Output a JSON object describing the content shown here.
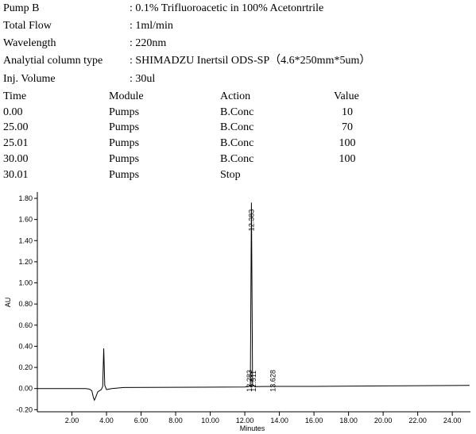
{
  "header": {
    "rows": [
      {
        "label": "Pump B",
        "value": ": 0.1% Trifluoroacetic in 100% Acetonrtrile"
      },
      {
        "label": "Total Flow",
        "value": ": 1ml/min"
      },
      {
        "label": "Wavelength",
        "value": ": 220nm"
      },
      {
        "label": "Analytial column type",
        "value": ": SHIMADZU Inertsil ODS-SP（4.6*250mm*5um）"
      },
      {
        "label": "Inj. Volume",
        "value": ": 30ul"
      }
    ]
  },
  "table": {
    "columns": [
      "Time",
      "Module",
      "Action",
      "Value"
    ],
    "rows": [
      [
        "0.00",
        "Pumps",
        "B.Conc",
        "10"
      ],
      [
        "25.00",
        "Pumps",
        "B.Conc",
        "70"
      ],
      [
        "25.01",
        "Pumps",
        "B.Conc",
        "100"
      ],
      [
        "30.00",
        "Pumps",
        "B.Conc",
        "100"
      ],
      [
        "30.01",
        "Pumps",
        "Stop"
      ]
    ]
  },
  "chart_data": {
    "type": "line",
    "x_label": "Minutes",
    "y_label": "AU",
    "color": "#000000",
    "xlim": [
      0,
      25.05
    ],
    "ylim": [
      -0.22,
      1.86
    ],
    "xticks": [
      {
        "value": 2,
        "label": "2.00"
      },
      {
        "value": 4,
        "label": "4.00"
      },
      {
        "value": 6,
        "label": "6.00"
      },
      {
        "value": 8,
        "label": "8.00"
      },
      {
        "value": 10,
        "label": "10.00"
      },
      {
        "value": 12,
        "label": "12.00"
      },
      {
        "value": 14,
        "label": "14.00"
      },
      {
        "value": 16,
        "label": "16.00"
      },
      {
        "value": 18,
        "label": "18.00"
      },
      {
        "value": 20,
        "label": "20.00"
      },
      {
        "value": 22,
        "label": "22.00"
      },
      {
        "value": 24,
        "label": "24.00"
      }
    ],
    "yticks": [
      {
        "value": -0.2,
        "label": "-0.20"
      },
      {
        "value": 0,
        "label": "0.00"
      },
      {
        "value": 0.2,
        "label": "0.20"
      },
      {
        "value": 0.4,
        "label": "0.40"
      },
      {
        "value": 0.6,
        "label": "0.60"
      },
      {
        "value": 0.8,
        "label": "0.80"
      },
      {
        "value": 1,
        "label": "1.00"
      },
      {
        "value": 1.2,
        "label": "1.20"
      },
      {
        "value": 1.4,
        "label": "1.40"
      },
      {
        "value": 1.6,
        "label": "1.60"
      },
      {
        "value": 1.8,
        "label": "1.80"
      }
    ],
    "x": [
      0,
      2.8,
      3.0,
      3.15,
      3.25,
      3.3,
      3.38,
      3.5,
      3.7,
      3.78,
      3.84,
      3.9,
      4.0,
      4.3,
      5.0,
      8.0,
      12.0,
      12.25,
      12.283,
      12.32,
      12.383,
      12.45,
      12.511,
      12.6,
      13.628,
      16,
      20,
      25
    ],
    "values": [
      0.0,
      0.0,
      -0.005,
      -0.02,
      -0.09,
      -0.11,
      -0.08,
      -0.03,
      -0.01,
      0.02,
      0.38,
      0.03,
      -0.01,
      0.0,
      0.01,
      0.012,
      0.015,
      0.02,
      0.03,
      0.02,
      1.76,
      0.02,
      0.03,
      0.018,
      0.02,
      0.02,
      0.025,
      0.03
    ],
    "peaks": [
      12.383,
      12.283,
      12.511,
      13.628
    ]
  }
}
